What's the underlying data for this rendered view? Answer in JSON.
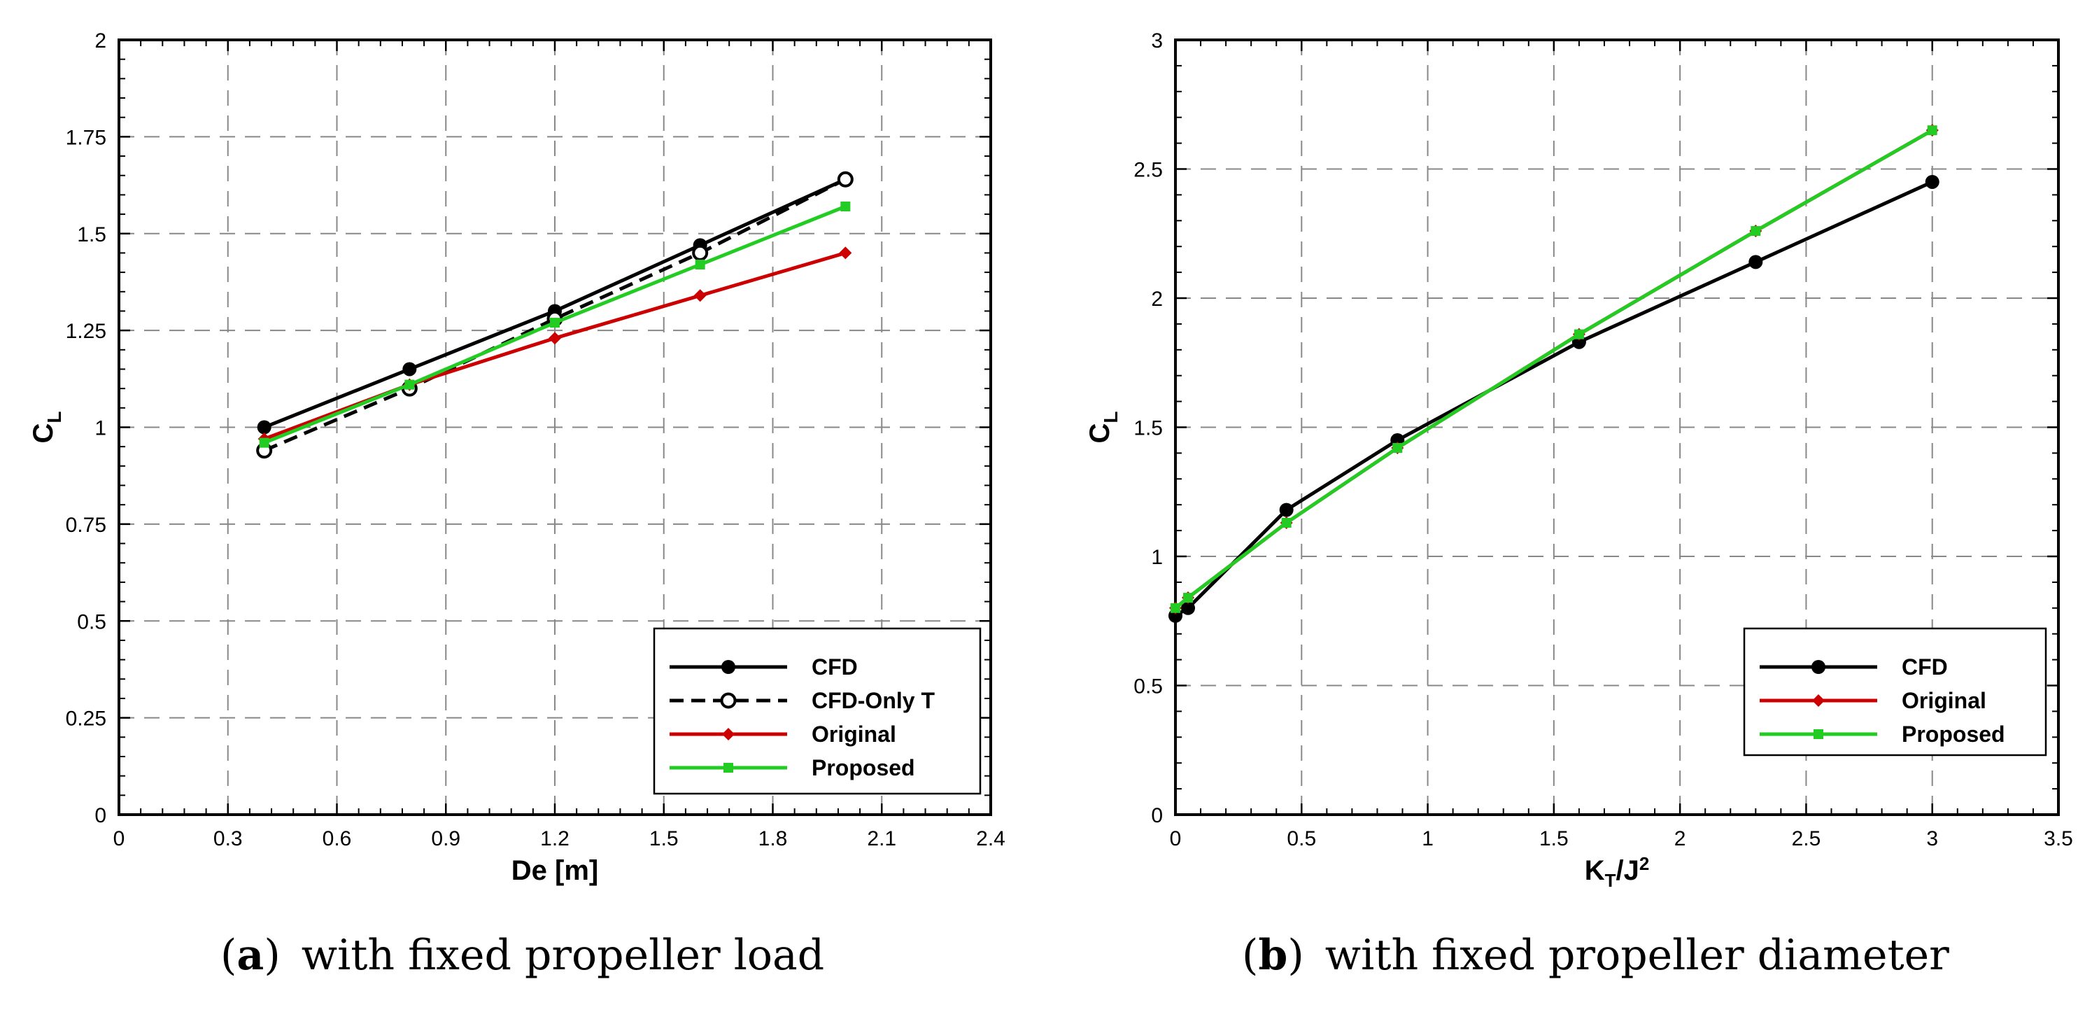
{
  "chart_data": [
    {
      "type": "line",
      "xlabel": "De [m]",
      "ylabel": {
        "base": "C",
        "sub": "L"
      },
      "xlim": [
        0,
        2.4
      ],
      "ylim": [
        0,
        2
      ],
      "xticks": [
        0,
        0.3,
        0.6,
        0.9,
        1.2,
        1.5,
        1.8,
        2.1,
        2.4
      ],
      "xtick_labels": [
        "0",
        "0.3",
        "0.6",
        "0.9",
        "1.2",
        "1.5",
        "1.8",
        "2.1",
        "2.4"
      ],
      "yticks": [
        0,
        0.25,
        0.5,
        0.75,
        1,
        1.25,
        1.5,
        1.75,
        2
      ],
      "ytick_labels": [
        "0",
        "0.25",
        "0.5",
        "0.75",
        "1",
        "1.25",
        "1.5",
        "1.75",
        "2"
      ],
      "grid": true,
      "legend_position": "bottom-right",
      "caption": {
        "label": "a",
        "text": "with fixed propeller load"
      },
      "series": [
        {
          "name": "CFD",
          "color": "#000000",
          "dash": "solid",
          "marker": "circle-filled",
          "x": [
            0.4,
            0.8,
            1.2,
            1.6,
            2.0
          ],
          "y": [
            1.0,
            1.15,
            1.3,
            1.47,
            1.64
          ]
        },
        {
          "name": "CFD-Only T",
          "color": "#000000",
          "dash": "dashed",
          "marker": "circle-open",
          "x": [
            0.4,
            0.8,
            1.2,
            1.6,
            2.0
          ],
          "y": [
            0.94,
            1.1,
            1.28,
            1.45,
            1.64
          ]
        },
        {
          "name": "Original",
          "color": "#cc0000",
          "dash": "solid",
          "marker": "diamond",
          "x": [
            0.4,
            0.8,
            1.2,
            1.6,
            2.0
          ],
          "y": [
            0.97,
            1.11,
            1.23,
            1.34,
            1.45
          ]
        },
        {
          "name": "Proposed",
          "color": "#22cc22",
          "dash": "solid",
          "marker": "square",
          "x": [
            0.4,
            0.8,
            1.2,
            1.6,
            2.0
          ],
          "y": [
            0.96,
            1.11,
            1.27,
            1.42,
            1.57
          ]
        }
      ]
    },
    {
      "type": "line",
      "xlabel": {
        "base": "K",
        "sub": "T",
        "mid": "/J",
        "sup": "2"
      },
      "ylabel": {
        "base": "C",
        "sub": "L"
      },
      "xlim": [
        0,
        3.5
      ],
      "ylim": [
        0,
        3
      ],
      "xticks": [
        0,
        0.5,
        1,
        1.5,
        2,
        2.5,
        3,
        3.5
      ],
      "xtick_labels": [
        "0",
        "0.5",
        "1",
        "1.5",
        "2",
        "2.5",
        "3",
        "3.5"
      ],
      "yticks": [
        0,
        0.5,
        1,
        1.5,
        2,
        2.5,
        3
      ],
      "ytick_labels": [
        "0",
        "0.5",
        "1",
        "1.5",
        "2",
        "2.5",
        "3"
      ],
      "grid": true,
      "legend_position": "bottom-right",
      "caption": {
        "label": "b",
        "text": "with fixed propeller diameter"
      },
      "series": [
        {
          "name": "CFD",
          "color": "#000000",
          "dash": "solid",
          "marker": "circle-filled",
          "x": [
            0,
            0.05,
            0.44,
            0.88,
            1.6,
            2.3,
            3.0
          ],
          "y": [
            0.77,
            0.8,
            1.18,
            1.45,
            1.83,
            2.14,
            2.45
          ]
        },
        {
          "name": "Original",
          "color": "#cc0000",
          "dash": "solid",
          "marker": "diamond",
          "x": [
            0,
            0.05,
            0.44,
            0.88,
            1.6,
            2.3,
            3.0
          ],
          "y": [
            0.8,
            0.84,
            1.13,
            1.42,
            1.86,
            2.26,
            2.65
          ]
        },
        {
          "name": "Proposed",
          "color": "#22cc22",
          "dash": "solid",
          "marker": "square",
          "x": [
            0,
            0.05,
            0.44,
            0.88,
            1.6,
            2.3,
            3.0
          ],
          "y": [
            0.8,
            0.84,
            1.13,
            1.42,
            1.86,
            2.26,
            2.65
          ]
        }
      ]
    }
  ]
}
